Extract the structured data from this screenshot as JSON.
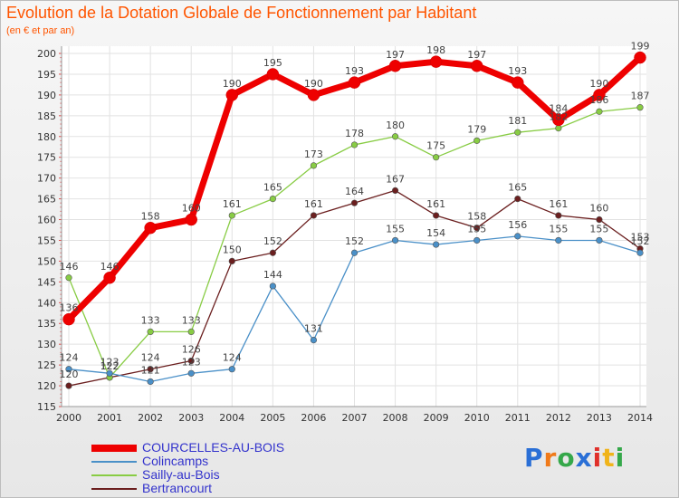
{
  "title": "Evolution de la Dotation Globale de Fonctionnement par Habitant",
  "subtitle": "(en € et par an)",
  "logo": {
    "text": "Proxiti",
    "colors": [
      "#2a6fd6",
      "#f07a1a",
      "#35a84a",
      "#2a6fd6",
      "#e0302a",
      "#f0b41a",
      "#35a84a"
    ]
  },
  "chart_data": {
    "type": "line",
    "title": "Evolution de la Dotation Globale de Fonctionnement par Habitant",
    "subtitle": "(en € et par an)",
    "x": [
      2000,
      2001,
      2002,
      2003,
      2004,
      2005,
      2006,
      2007,
      2008,
      2009,
      2010,
      2011,
      2012,
      2013,
      2014
    ],
    "ylim": [
      115,
      200
    ],
    "yticks": [
      115,
      120,
      125,
      130,
      135,
      140,
      145,
      150,
      155,
      160,
      165,
      170,
      175,
      180,
      185,
      190,
      195,
      200
    ],
    "grid": true,
    "legend": "bottom-left",
    "series": [
      {
        "name": "COURCELLES-AU-BOIS",
        "color": "#ee0000",
        "values": [
          136,
          146,
          158,
          160,
          190,
          195,
          190,
          193,
          197,
          198,
          197,
          193,
          184,
          190,
          199
        ],
        "labels": [
          "136",
          "146",
          "158",
          "160",
          "190",
          "195",
          "190",
          "193",
          "197",
          "198",
          "197",
          "193",
          "184",
          "190",
          "199"
        ]
      },
      {
        "name": "Colincamps",
        "color": "#4a90c8",
        "values": [
          124,
          123,
          121,
          123,
          124,
          144,
          131,
          152,
          155,
          154,
          155,
          156,
          155,
          155,
          152
        ],
        "labels": [
          "124",
          "123",
          "121",
          "123",
          "124",
          "144",
          "131",
          "152",
          "155",
          "154",
          "155",
          "156",
          "155",
          "155",
          "152"
        ]
      },
      {
        "name": "Sailly-au-Bois",
        "color": "#88cc44",
        "values": [
          146,
          122,
          133,
          133,
          161,
          165,
          173,
          178,
          180,
          175,
          179,
          181,
          182,
          186,
          187
        ],
        "labels": [
          "146",
          "122",
          "133",
          "133",
          "161",
          "165",
          "173",
          "178",
          "180",
          "175",
          "179",
          "181",
          "182",
          "186",
          "187"
        ]
      },
      {
        "name": "Bertrancourt",
        "color": "#6b1f1f",
        "values": [
          120,
          122,
          124,
          126,
          150,
          152,
          161,
          164,
          167,
          161,
          158,
          165,
          161,
          160,
          153
        ],
        "labels": [
          "120",
          "122",
          "124",
          "126",
          "150",
          "152",
          "161",
          "164",
          "167",
          "161",
          "158",
          "165",
          "161",
          "160",
          "153"
        ]
      }
    ]
  }
}
